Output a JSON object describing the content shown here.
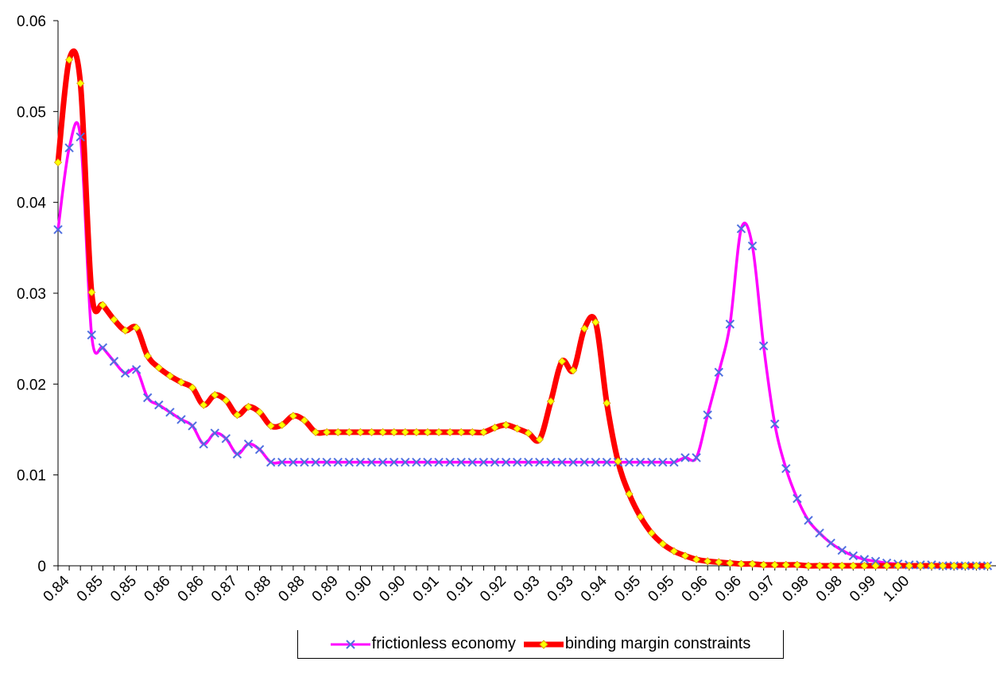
{
  "chart_data": {
    "type": "line",
    "title": "",
    "xlabel": "",
    "ylabel": "",
    "xlim": [
      0.8375,
      1.005
    ],
    "ylim": [
      0,
      0.06
    ],
    "y_ticks": [
      "0",
      "0.01",
      "0.02",
      "0.03",
      "0.04",
      "0.05",
      "0.06"
    ],
    "x_tick_labels": [
      "0.84",
      "0.85",
      "0.85",
      "0.86",
      "0.86",
      "0.87",
      "0.88",
      "0.88",
      "0.89",
      "0.90",
      "0.90",
      "0.91",
      "0.91",
      "0.92",
      "0.93",
      "0.93",
      "0.94",
      "0.95",
      "0.95",
      "0.96",
      "0.96",
      "0.97",
      "0.98",
      "0.98",
      "0.99",
      "1.00"
    ],
    "legend": "bottom",
    "grid": false,
    "x": [
      0.8375,
      0.8395,
      0.8415,
      0.8435,
      0.8455,
      0.8475,
      0.8495,
      0.8515,
      0.8535,
      0.8555,
      0.8575,
      0.8595,
      0.8615,
      0.8635,
      0.8655,
      0.8675,
      0.8695,
      0.8715,
      0.8735,
      0.8755,
      0.8775,
      0.8795,
      0.8815,
      0.8835,
      0.8855,
      0.8875,
      0.8895,
      0.8915,
      0.8935,
      0.8955,
      0.8975,
      0.8995,
      0.9015,
      0.9035,
      0.9055,
      0.9075,
      0.9095,
      0.9115,
      0.9135,
      0.9155,
      0.9175,
      0.9195,
      0.9215,
      0.9235,
      0.9255,
      0.9275,
      0.9295,
      0.9315,
      0.9335,
      0.9355,
      0.9375,
      0.9395,
      0.9415,
      0.9435,
      0.9455,
      0.9475,
      0.9495,
      0.9515,
      0.9535,
      0.9555,
      0.9575,
      0.9595,
      0.9615,
      0.9635,
      0.9655,
      0.9675,
      0.9695,
      0.9715,
      0.9735,
      0.9755,
      0.9775,
      0.9795,
      0.9815,
      0.9835,
      0.9855,
      0.9875,
      0.9895,
      0.9915,
      0.9935,
      0.9955,
      0.9975,
      0.9995,
      1.0015,
      1.0035
    ],
    "series": [
      {
        "name": "frictionless economy",
        "color": "#ff00ff",
        "marker": "x",
        "marker_color": "#4f6fe0",
        "values": [
          0.037,
          0.046,
          0.0472,
          0.0254,
          0.024,
          0.0225,
          0.0212,
          0.0216,
          0.0185,
          0.0177,
          0.0169,
          0.0161,
          0.0154,
          0.0134,
          0.0146,
          0.014,
          0.0123,
          0.0134,
          0.0128,
          0.0114,
          0.0114,
          0.0114,
          0.0114,
          0.0114,
          0.0114,
          0.0114,
          0.0114,
          0.0114,
          0.0114,
          0.0114,
          0.0114,
          0.0114,
          0.0114,
          0.0114,
          0.0114,
          0.0114,
          0.0114,
          0.0114,
          0.0114,
          0.0114,
          0.0114,
          0.0114,
          0.0114,
          0.0114,
          0.0114,
          0.0114,
          0.0114,
          0.0114,
          0.0114,
          0.0114,
          0.0114,
          0.0114,
          0.0114,
          0.0114,
          0.0114,
          0.0114,
          0.0119,
          0.0119,
          0.0166,
          0.0213,
          0.0266,
          0.0371,
          0.0352,
          0.0242,
          0.0156,
          0.0107,
          0.0074,
          0.005,
          0.0036,
          0.0025,
          0.0017,
          0.0011,
          0.0007,
          0.0005,
          0.0003,
          0.0002,
          0.0001,
          0.0001,
          0.0001,
          0.0,
          0.0,
          0.0,
          0.0,
          0.0
        ]
      },
      {
        "name": "binding margin constraints",
        "color": "#ff0000",
        "marker": "diamond",
        "marker_color": "#ffff00",
        "values": [
          0.0444,
          0.0557,
          0.0531,
          0.0301,
          0.0287,
          0.0271,
          0.0259,
          0.0262,
          0.0231,
          0.0218,
          0.0209,
          0.0202,
          0.0196,
          0.0177,
          0.0188,
          0.0182,
          0.0166,
          0.0175,
          0.0169,
          0.0154,
          0.0155,
          0.0165,
          0.016,
          0.0147,
          0.0147,
          0.0147,
          0.0147,
          0.0147,
          0.0147,
          0.0147,
          0.0147,
          0.0147,
          0.0147,
          0.0147,
          0.0147,
          0.0147,
          0.0147,
          0.0147,
          0.0147,
          0.0152,
          0.0155,
          0.0151,
          0.0146,
          0.0139,
          0.0181,
          0.0225,
          0.0215,
          0.0261,
          0.0268,
          0.0179,
          0.0115,
          0.0079,
          0.0054,
          0.0036,
          0.0024,
          0.0016,
          0.0011,
          0.0007,
          0.0005,
          0.0004,
          0.0003,
          0.0002,
          0.0002,
          0.0001,
          0.0001,
          0.0001,
          0.0001,
          0.0,
          0.0,
          0.0,
          0.0,
          0.0,
          0.0,
          0.0,
          0.0,
          0.0,
          0.0,
          0.0,
          0.0,
          0.0,
          0.0,
          0.0,
          0.0,
          0.0
        ]
      }
    ]
  }
}
